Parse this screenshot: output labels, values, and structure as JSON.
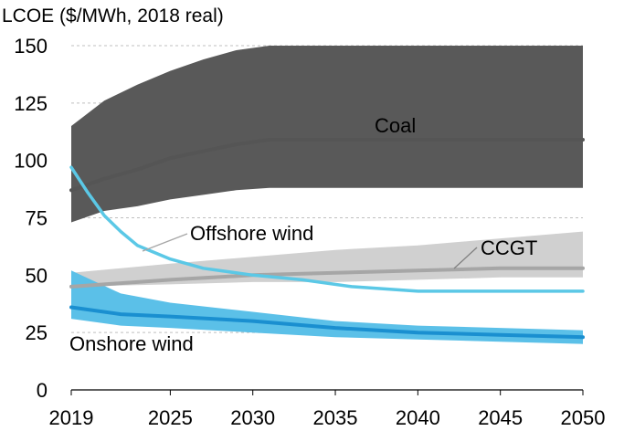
{
  "chart_data": {
    "type": "area",
    "title": "LCOE ($/MWh, 2018 real)",
    "xlabel": "",
    "ylabel": "",
    "xlim": [
      2019,
      2050
    ],
    "ylim": [
      0,
      150
    ],
    "xticks": [
      2019,
      2025,
      2030,
      2035,
      2040,
      2045,
      2050
    ],
    "yticks": [
      0,
      25,
      50,
      75,
      100,
      125,
      150
    ],
    "grid": "horizontal dashed",
    "legend": "none (direct labels)",
    "series": [
      {
        "name": "Coal",
        "color": "#555555",
        "band_color": "#595959",
        "x": [
          2019,
          2021,
          2023,
          2025,
          2027,
          2029,
          2031,
          2040,
          2050
        ],
        "central": [
          87,
          92,
          96,
          101,
          104,
          107,
          109,
          109,
          109
        ],
        "band_low": [
          73,
          78,
          80,
          83,
          85,
          87,
          88,
          88,
          88
        ],
        "band_high": [
          115,
          126,
          133,
          139,
          144,
          148,
          150,
          150,
          150
        ]
      },
      {
        "name": "CCGT",
        "color": "#a6a6a6",
        "band_color": "#d0d0d0",
        "x": [
          2019,
          2025,
          2030,
          2035,
          2040,
          2045,
          2050
        ],
        "central": [
          45,
          48,
          50,
          51,
          52,
          53,
          53
        ],
        "band_low": [
          45,
          46,
          47,
          47,
          48,
          49,
          49
        ],
        "band_high": [
          51,
          55,
          58,
          61,
          63,
          66,
          69
        ]
      },
      {
        "name": "Offshore wind",
        "color": "#5bc8e6",
        "x": [
          2019,
          2020,
          2021,
          2022,
          2023,
          2025,
          2027,
          2030,
          2033,
          2036,
          2040,
          2045,
          2050
        ],
        "values": [
          97,
          86,
          76,
          69,
          63,
          57,
          53,
          50,
          48,
          45,
          43,
          43,
          43
        ]
      },
      {
        "name": "Onshore wind",
        "color": "#1a8fd0",
        "band_color": "#5bc0e8",
        "x": [
          2019,
          2022,
          2025,
          2030,
          2035,
          2040,
          2045,
          2050
        ],
        "central": [
          36,
          33,
          32,
          30,
          27,
          25,
          24,
          23
        ],
        "band_low": [
          31,
          28,
          27,
          25,
          23,
          22,
          21,
          20
        ],
        "band_high": [
          52,
          42,
          38,
          34,
          30,
          28,
          27,
          26
        ]
      }
    ],
    "annotations": [
      {
        "text": "Coal"
      },
      {
        "text": "Offshore wind"
      },
      {
        "text": "CCGT"
      },
      {
        "text": "Onshore wind"
      }
    ]
  }
}
